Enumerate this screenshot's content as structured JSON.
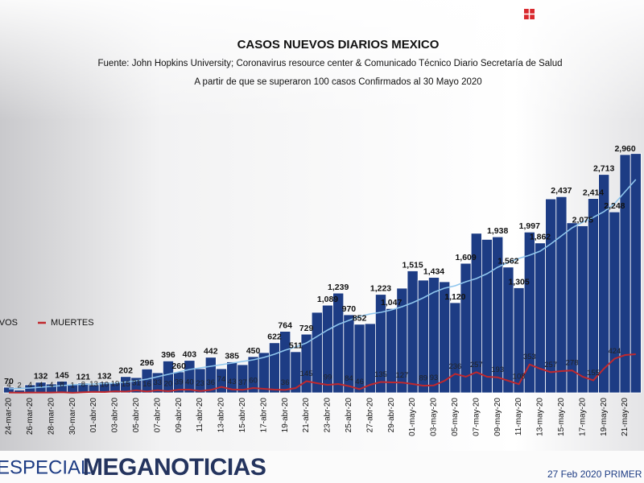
{
  "chart_data": {
    "type": "bar",
    "title": "CASOS NUEVOS DIARIOS MEXICO",
    "subtitle": "Fuente: John Hopkins University; Coronavirus resource center & Comunicado Técnico Diario Secretaría de Salud",
    "note": "A partir de que se superaron 100 casos Confirmados al 30 Mayo 2020",
    "categories": [
      "24-mar-20",
      null,
      "26-mar-20",
      null,
      "28-mar-20",
      null,
      "30-mar-20",
      null,
      "01-abr-20",
      null,
      "03-abr-20",
      null,
      "05-abr-20",
      null,
      "07-abr-20",
      null,
      "09-abr-20",
      null,
      "11-abr-20",
      null,
      "13-abr-20",
      null,
      "15-abr-20",
      null,
      "17-abr-20",
      null,
      "19-abr-20",
      null,
      "21-abr-20",
      null,
      "23-abr-20",
      null,
      "25-abr-20",
      null,
      "27-abr-20",
      null,
      "29-abr-20",
      null,
      "01-may-20",
      null,
      "03-may-20",
      null,
      "05-may-20",
      null,
      "07-may-20",
      null,
      "09-may-20",
      null,
      "11-may-20",
      null,
      "13-may-20",
      null,
      "15-may-20",
      null,
      "17-may-20",
      null,
      "19-may-20",
      null,
      "21-may-20",
      null
    ],
    "ylim": [
      0,
      3000
    ],
    "series": [
      {
        "name": "NUEVOS",
        "color": "#1d3c84",
        "values": [
          70,
          35,
          100,
          132,
          110,
          145,
          100,
          121,
          100,
          132,
          130,
          202,
          190,
          296,
          250,
          396,
          260,
          403,
          300,
          442,
          300,
          385,
          350,
          450,
          500,
          622,
          764,
          511,
          729,
          1000,
          1089,
          1239,
          970,
          852,
          860,
          1223,
          1047,
          1300,
          1515,
          1400,
          1434,
          1380,
          1120,
          1609,
          1982,
          1906,
          1938,
          1562,
          1305,
          1997,
          1862,
          2409,
          2437,
          2112,
          2075,
          2414,
          2713,
          2248,
          2960,
          2973
        ],
        "value_labels": [
          "70",
          null,
          null,
          "132",
          null,
          "145",
          null,
          "121",
          null,
          "132",
          null,
          "202",
          null,
          "296",
          null,
          "396",
          "260",
          "403",
          null,
          "442",
          null,
          "385",
          null,
          "450",
          null,
          "622",
          "764",
          "511",
          "729",
          null,
          "1,089",
          "1,239",
          "970",
          "852",
          null,
          "1,223",
          "1,047",
          null,
          "1,515",
          null,
          "1,434",
          null,
          "1,120",
          "1,609",
          null,
          null,
          "1,938",
          "1,562",
          "1,305",
          "1,997",
          "1,862",
          null,
          "2,437",
          null,
          "2,075",
          "2,414",
          "2,713",
          "2,248",
          "2,960",
          null
        ]
      },
      {
        "name": "MUERTES",
        "color": "#c0282d",
        "values": [
          4,
          2,
          4,
          4,
          4,
          8,
          1,
          8,
          13,
          10,
          19,
          15,
          31,
          16,
          33,
          20,
          39,
          40,
          23,
          36,
          74,
          43,
          37,
          60,
          50,
          40,
          36,
          60,
          145,
          120,
          99,
          110,
          84,
          46,
          100,
          135,
          130,
          127,
          110,
          89,
          93,
          150,
          236,
          200,
          257,
          200,
          193,
          150,
          108,
          353,
          300,
          257,
          270,
          278,
          200,
          155,
          300,
          424,
          470,
          480
        ],
        "value_labels": [
          "4",
          "2",
          "4",
          "4",
          "4",
          "8",
          "1",
          "8",
          "13",
          "10",
          "19",
          "15",
          "31",
          "16",
          "33",
          "20",
          "39",
          "40",
          "23",
          "36",
          "74",
          "43",
          "37",
          "60",
          null,
          null,
          "36",
          null,
          "145",
          null,
          "99",
          null,
          "84",
          "46",
          null,
          "135",
          null,
          "127",
          null,
          "89",
          "93",
          null,
          "236",
          null,
          "257",
          null,
          "193",
          null,
          "108",
          "353",
          null,
          "257",
          null,
          "278",
          null,
          "155",
          null,
          "424",
          null,
          null
        ]
      },
      {
        "color": "#8fc6ee",
        "values": [
          50,
          55,
          60,
          70,
          80,
          90,
          100,
          105,
          110,
          115,
          120,
          135,
          150,
          170,
          200,
          230,
          260,
          290,
          310,
          330,
          350,
          370,
          390,
          410,
          440,
          480,
          530,
          570,
          620,
          700,
          780,
          850,
          900,
          950,
          980,
          1000,
          1030,
          1070,
          1120,
          1180,
          1250,
          1300,
          1330,
          1380,
          1420,
          1480,
          1560,
          1620,
          1670,
          1710,
          1760,
          1850,
          1950,
          2050,
          2120,
          2180,
          2250,
          2350,
          2500,
          2650
        ]
      }
    ],
    "footer": {
      "program": "ESPECIAL",
      "brand": "MEGANOTICIAS",
      "ticker": "27 Feb 2020 PRIMER"
    }
  }
}
